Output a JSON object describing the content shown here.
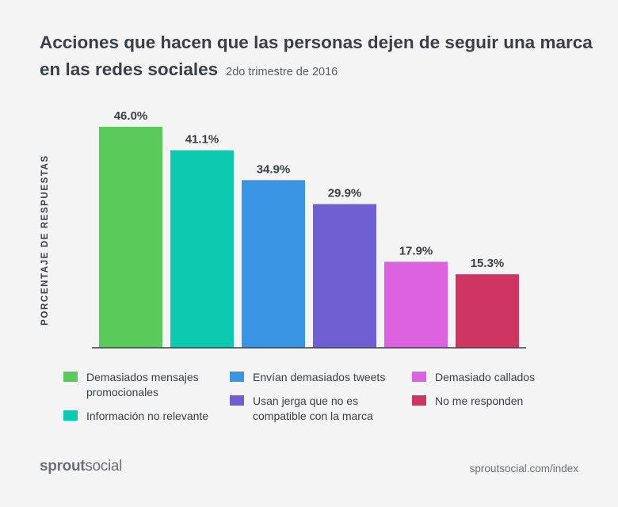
{
  "header": {
    "title": "Acciones que hacen que las personas dejen de seguir una marca en las redes sociales",
    "subtitle": "2do trimestre de 2016"
  },
  "chart_data": {
    "type": "bar",
    "title": "Acciones que hacen que las personas dejen de seguir una marca en las redes sociales",
    "subtitle": "2do trimestre de 2016",
    "ylabel": "PORCENTAJE DE RESPUESTAS",
    "xlabel": "",
    "ylim": [
      0,
      46.0
    ],
    "categories": [
      "Demasiados mensajes promocionales",
      "Información no relevante",
      "Envían demasiados tweets",
      "Usan jerga que no es compatible con la marca",
      "Demasiado callados",
      "No me responden"
    ],
    "values": [
      46.0,
      41.1,
      34.9,
      29.9,
      17.9,
      15.3
    ],
    "value_labels": [
      "46.0%",
      "41.1%",
      "34.9%",
      "29.9%",
      "17.9%",
      "15.3%"
    ],
    "colors": [
      "#5acb5a",
      "#0ccaaf",
      "#3a96e4",
      "#6f5fd2",
      "#dc62df",
      "#cf3563"
    ],
    "legend_placement": "bottom"
  },
  "legend": {
    "items": [
      {
        "label": "Demasiados mensajes\npromocionales",
        "color": "#5acb5a"
      },
      {
        "label": "Información no relevante",
        "color": "#0ccaaf"
      },
      {
        "label": "Envían demasiados tweets",
        "color": "#3a96e4"
      },
      {
        "label": "Usan jerga que no es\ncompatible con la marca",
        "color": "#6f5fd2"
      },
      {
        "label": "Demasiado callados",
        "color": "#dc62df"
      },
      {
        "label": "No me responden",
        "color": "#cf3563"
      }
    ]
  },
  "footer": {
    "brand_bold": "sprout",
    "brand_light": "social",
    "url": "sproutsocial.com/index"
  }
}
